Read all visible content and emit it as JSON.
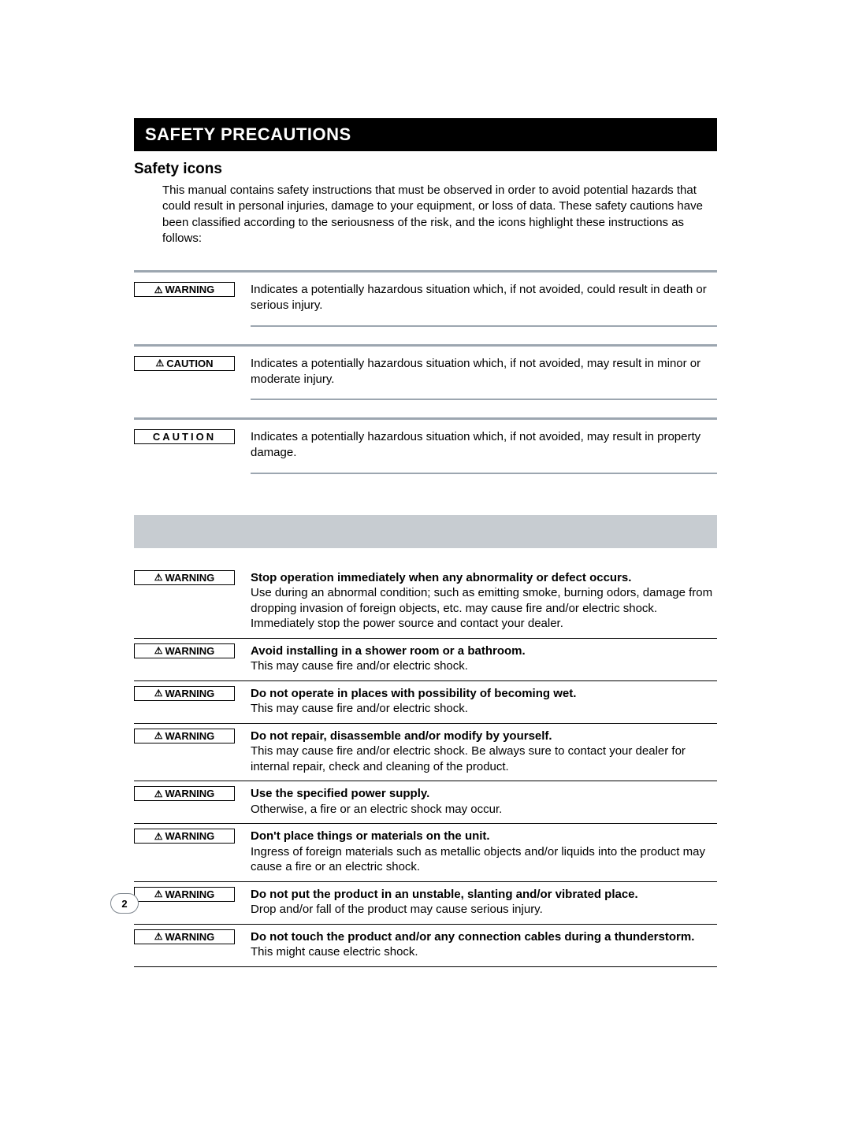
{
  "page_number": "2",
  "title": "SAFETY PRECAUTIONS",
  "subtitle": "Safety icons",
  "intro": "This manual contains safety instructions that must be observed in order to avoid potential hazards that could result in personal injuries, damage to your equipment, or loss of data. These safety cautions have been classified according to the seriousness of the risk, and the icons highlight these instructions as follows:",
  "label_warning": "WARNING",
  "label_caution": "CAUTION",
  "label_caution_plain": "CAUTION",
  "definitions": [
    {
      "label_key": "label_warning",
      "has_triangle": true,
      "text": "Indicates a potentially hazardous situation which, if not avoided, could result in death or serious injury."
    },
    {
      "label_key": "label_caution",
      "has_triangle": true,
      "text": "Indicates a potentially hazardous situation which, if not avoided, may result in minor or moderate injury."
    },
    {
      "label_key": "label_caution_plain",
      "has_triangle": false,
      "spaced": true,
      "text": "Indicates a potentially hazardous situation which, if not avoided, may result in property damage."
    }
  ],
  "warnings": [
    {
      "heading": "Stop operation immediately when any abnormality or defect occurs.",
      "body": "Use during an abnormal condition; such as emitting smoke, burning odors, damage from dropping invasion of foreign objects, etc. may cause fire and/or electric shock. Immediately stop the power source and contact your dealer."
    },
    {
      "heading": "Avoid installing in a shower room or a bathroom.",
      "body": "This may cause fire and/or electric shock."
    },
    {
      "heading": "Do not operate in places with possibility of becoming wet.",
      "body": "This may cause fire and/or electric shock."
    },
    {
      "heading": "Do not repair, disassemble and/or modify by yourself.",
      "body": "This may cause fire and/or electric shock. Be always sure to contact your dealer for internal repair, check and cleaning of the product."
    },
    {
      "heading": "Use the specified power supply.",
      "body": "Otherwise, a fire or an electric shock may occur."
    },
    {
      "heading": "Don't place things or materials on the unit.",
      "body": "Ingress of foreign materials such as metallic objects and/or liquids into the product may cause a fire or an electric shock."
    },
    {
      "heading": "Do not put the product in an unstable, slanting and/or vibrated place.",
      "body": "Drop and/or fall of the product may cause serious injury."
    },
    {
      "heading": "Do not touch the product and/or any connection cables during a thunderstorm.",
      "body": "This might cause electric shock."
    }
  ],
  "colors": {
    "rule_gray": "#9ca6b0",
    "band_gray": "#c7ccd1",
    "pagenum_border": "#808890"
  }
}
